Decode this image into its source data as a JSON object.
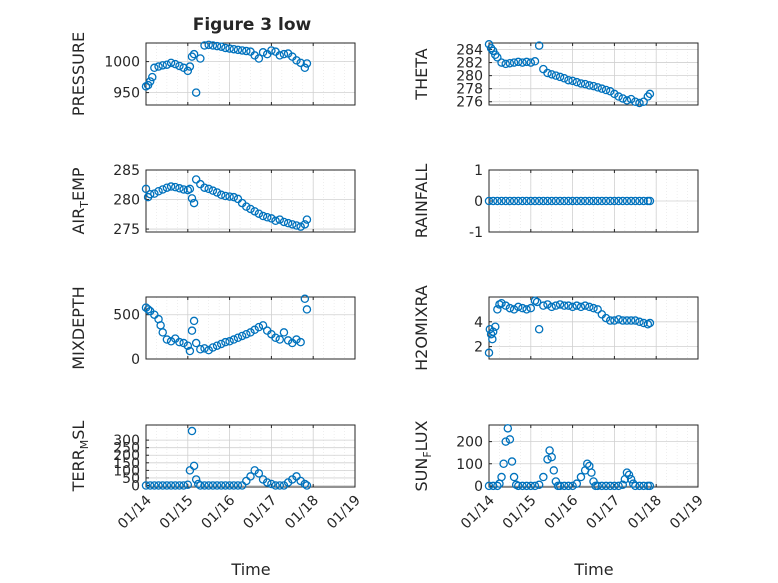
{
  "figure": {
    "title": "Figure 3 low",
    "marker_color": "#0072BD",
    "date_ticks": [
      "01/14",
      "01/15",
      "01/16",
      "01/17",
      "01/18",
      "01/19"
    ],
    "xlabel": "Time"
  },
  "chart_data": [
    {
      "type": "scatter",
      "name": "PRESSURE",
      "ylabel": "PRESSURE",
      "xlim": [
        "01/14",
        "01/19"
      ],
      "ylim": [
        930,
        1030
      ],
      "yticks": [
        950,
        1000
      ],
      "grid": true,
      "title": "Figure 3 low",
      "x": [
        14.0,
        14.05,
        14.1,
        14.15,
        14.2,
        14.3,
        14.4,
        14.5,
        14.6,
        14.7,
        14.8,
        14.9,
        15.0,
        15.05,
        15.1,
        15.15,
        15.2,
        15.3,
        15.4,
        15.5,
        15.6,
        15.7,
        15.8,
        15.9,
        16.0,
        16.1,
        16.2,
        16.3,
        16.4,
        16.5,
        16.6,
        16.7,
        16.8,
        16.9,
        17.0,
        17.1,
        17.2,
        17.3,
        17.4,
        17.5,
        17.6,
        17.7,
        17.8,
        17.85
      ],
      "y": [
        960,
        962,
        968,
        975,
        990,
        992,
        994,
        995,
        998,
        996,
        993,
        990,
        985,
        992,
        1008,
        1012,
        950,
        1005,
        1026,
        1027,
        1026,
        1025,
        1024,
        1022,
        1021,
        1020,
        1019,
        1018,
        1017,
        1016,
        1010,
        1005,
        1015,
        1012,
        1018,
        1016,
        1010,
        1012,
        1013,
        1008,
        1002,
        998,
        990,
        997
      ]
    },
    {
      "type": "scatter",
      "name": "THETA",
      "ylabel": "THETA",
      "xlim": [
        "01/14",
        "01/19"
      ],
      "ylim": [
        275.5,
        285
      ],
      "yticks": [
        276,
        278,
        280,
        282,
        284
      ],
      "grid": true,
      "x": [
        14.0,
        14.05,
        14.1,
        14.15,
        14.2,
        14.3,
        14.4,
        14.5,
        14.6,
        14.7,
        14.8,
        14.9,
        15.0,
        15.1,
        15.2,
        15.3,
        15.4,
        15.5,
        15.6,
        15.7,
        15.8,
        15.9,
        16.0,
        16.1,
        16.2,
        16.3,
        16.4,
        16.5,
        16.6,
        16.7,
        16.8,
        16.9,
        17.0,
        17.1,
        17.2,
        17.3,
        17.4,
        17.5,
        17.6,
        17.7,
        17.8,
        17.85
      ],
      "y": [
        284.8,
        284.2,
        283.8,
        283.2,
        282.8,
        282.0,
        281.8,
        281.9,
        282.0,
        282.1,
        282.0,
        282.1,
        282.0,
        282.2,
        284.6,
        281.0,
        280.4,
        280.2,
        280.0,
        279.8,
        279.6,
        279.3,
        279.2,
        279.0,
        278.8,
        278.7,
        278.5,
        278.4,
        278.2,
        278.0,
        277.8,
        277.6,
        277.2,
        276.8,
        276.5,
        276.2,
        276.4,
        276.0,
        275.8,
        276.0,
        276.8,
        277.2
      ]
    },
    {
      "type": "scatter",
      "name": "AIR_TEMP",
      "ylabel": "AIR_TEMP",
      "xlim": [
        "01/14",
        "01/19"
      ],
      "ylim": [
        274.5,
        285
      ],
      "yticks": [
        275,
        280,
        285
      ],
      "grid": true,
      "x": [
        14.0,
        14.05,
        14.1,
        14.2,
        14.3,
        14.4,
        14.5,
        14.6,
        14.7,
        14.8,
        14.9,
        15.0,
        15.05,
        15.1,
        15.15,
        15.2,
        15.3,
        15.4,
        15.5,
        15.6,
        15.7,
        15.8,
        15.9,
        16.0,
        16.1,
        16.2,
        16.3,
        16.4,
        16.5,
        16.6,
        16.7,
        16.8,
        16.9,
        17.0,
        17.1,
        17.2,
        17.3,
        17.4,
        17.5,
        17.6,
        17.7,
        17.8,
        17.85
      ],
      "y": [
        281.8,
        280.4,
        280.9,
        281.0,
        281.4,
        281.7,
        282.0,
        282.2,
        282.1,
        281.9,
        281.7,
        281.6,
        281.8,
        280.2,
        279.4,
        283.4,
        282.6,
        282.0,
        281.8,
        281.5,
        281.2,
        280.8,
        280.6,
        280.5,
        280.4,
        280.1,
        279.4,
        278.8,
        278.4,
        278.0,
        277.6,
        277.2,
        277.0,
        276.8,
        276.4,
        276.6,
        276.2,
        276.0,
        275.8,
        275.6,
        275.4,
        275.8,
        276.6
      ]
    },
    {
      "type": "scatter",
      "name": "RAINFALL",
      "ylabel": "RAINFALL",
      "xlim": [
        "01/14",
        "01/19"
      ],
      "ylim": [
        -1,
        1
      ],
      "yticks": [
        -1,
        0,
        1
      ],
      "grid": true,
      "x": [
        14.0,
        14.1,
        14.2,
        14.3,
        14.4,
        14.5,
        14.6,
        14.7,
        14.8,
        14.9,
        15.0,
        15.1,
        15.2,
        15.3,
        15.4,
        15.5,
        15.6,
        15.7,
        15.8,
        15.9,
        16.0,
        16.1,
        16.2,
        16.3,
        16.4,
        16.5,
        16.6,
        16.7,
        16.8,
        16.9,
        17.0,
        17.1,
        17.2,
        17.3,
        17.4,
        17.5,
        17.6,
        17.7,
        17.8,
        17.85
      ],
      "y": [
        0,
        0,
        0,
        0,
        0,
        0,
        0,
        0,
        0,
        0,
        0,
        0,
        0,
        0,
        0,
        0,
        0,
        0,
        0,
        0,
        0,
        0,
        0,
        0,
        0,
        0,
        0,
        0,
        0,
        0,
        0,
        0,
        0,
        0,
        0,
        0,
        0,
        0,
        0,
        0
      ]
    },
    {
      "type": "scatter",
      "name": "MIXDEPTH",
      "ylabel": "MIXDEPTH",
      "xlim": [
        "01/14",
        "01/19"
      ],
      "ylim": [
        0,
        700
      ],
      "yticks": [
        0,
        500
      ],
      "grid": true,
      "x": [
        14.0,
        14.05,
        14.1,
        14.2,
        14.3,
        14.35,
        14.4,
        14.5,
        14.6,
        14.7,
        14.8,
        14.9,
        15.0,
        15.05,
        15.1,
        15.15,
        15.2,
        15.3,
        15.4,
        15.5,
        15.6,
        15.7,
        15.8,
        15.9,
        16.0,
        16.1,
        16.2,
        16.3,
        16.4,
        16.5,
        16.6,
        16.7,
        16.8,
        16.9,
        17.0,
        17.1,
        17.2,
        17.3,
        17.4,
        17.5,
        17.6,
        17.7,
        17.8,
        17.85
      ],
      "y": [
        580,
        560,
        540,
        500,
        450,
        380,
        300,
        220,
        200,
        230,
        190,
        180,
        150,
        90,
        320,
        430,
        180,
        110,
        120,
        100,
        130,
        150,
        170,
        190,
        200,
        220,
        240,
        260,
        280,
        300,
        330,
        360,
        380,
        320,
        280,
        240,
        220,
        300,
        210,
        180,
        220,
        190,
        680,
        560
      ]
    },
    {
      "type": "scatter",
      "name": "H2OMIXRA",
      "ylabel": "H2OMIXRA",
      "xlim": [
        "01/14",
        "01/19"
      ],
      "ylim": [
        1,
        6
      ],
      "yticks": [
        2,
        4
      ],
      "grid": true,
      "x": [
        14.0,
        14.02,
        14.05,
        14.08,
        14.1,
        14.15,
        14.2,
        14.25,
        14.3,
        14.4,
        14.5,
        14.6,
        14.7,
        14.8,
        14.9,
        15.0,
        15.1,
        15.15,
        15.2,
        15.3,
        15.4,
        15.5,
        15.6,
        15.7,
        15.8,
        15.9,
        16.0,
        16.1,
        16.2,
        16.3,
        16.4,
        16.5,
        16.6,
        16.7,
        16.8,
        16.9,
        17.0,
        17.1,
        17.2,
        17.3,
        17.4,
        17.5,
        17.6,
        17.7,
        17.8,
        17.85
      ],
      "y": [
        1.5,
        3.4,
        3.0,
        2.6,
        3.2,
        3.6,
        5.0,
        5.4,
        5.5,
        5.3,
        5.1,
        5.0,
        5.2,
        5.1,
        5.0,
        5.1,
        5.7,
        5.6,
        3.4,
        5.3,
        5.4,
        5.2,
        5.3,
        5.4,
        5.3,
        5.3,
        5.2,
        5.3,
        5.2,
        5.3,
        5.2,
        5.1,
        5.0,
        4.6,
        4.3,
        4.1,
        4.1,
        4.2,
        4.1,
        4.1,
        4.1,
        4.1,
        4.0,
        3.9,
        3.8,
        3.9
      ]
    },
    {
      "type": "scatter",
      "name": "TERR_MSL",
      "ylabel": "TERR_MSL",
      "xlim": [
        "01/14",
        "01/19"
      ],
      "ylim": [
        -10,
        400
      ],
      "yticks": [
        0,
        50,
        100,
        150,
        200,
        250,
        300
      ],
      "grid": true,
      "x": [
        14.0,
        14.1,
        14.2,
        14.3,
        14.4,
        14.5,
        14.6,
        14.7,
        14.8,
        14.9,
        15.0,
        15.05,
        15.1,
        15.15,
        15.2,
        15.25,
        15.3,
        15.4,
        15.5,
        15.6,
        15.7,
        15.8,
        15.9,
        16.0,
        16.1,
        16.2,
        16.3,
        16.4,
        16.5,
        16.6,
        16.7,
        16.8,
        16.9,
        17.0,
        17.1,
        17.2,
        17.3,
        17.4,
        17.5,
        17.6,
        17.7,
        17.8,
        17.85
      ],
      "y": [
        0,
        0,
        0,
        0,
        0,
        0,
        0,
        0,
        0,
        0,
        5,
        100,
        360,
        130,
        40,
        10,
        0,
        0,
        0,
        0,
        0,
        0,
        0,
        0,
        0,
        0,
        0,
        30,
        60,
        100,
        80,
        40,
        20,
        10,
        0,
        0,
        0,
        20,
        40,
        60,
        30,
        10,
        0
      ]
    },
    {
      "type": "scatter",
      "name": "SUN_FLUX",
      "ylabel": "SUN_FLUX",
      "xlim": [
        "01/14",
        "01/19"
      ],
      "ylim": [
        -5,
        275
      ],
      "yticks": [
        0,
        100,
        200
      ],
      "grid": true,
      "x": [
        14.0,
        14.1,
        14.2,
        14.25,
        14.3,
        14.35,
        14.4,
        14.45,
        14.5,
        14.55,
        14.6,
        14.65,
        14.7,
        14.8,
        14.9,
        15.0,
        15.1,
        15.2,
        15.3,
        15.4,
        15.45,
        15.5,
        15.55,
        15.6,
        15.65,
        15.7,
        15.8,
        15.9,
        16.0,
        16.1,
        16.2,
        16.3,
        16.35,
        16.4,
        16.45,
        16.5,
        16.55,
        16.6,
        16.7,
        16.8,
        16.9,
        17.0,
        17.1,
        17.2,
        17.25,
        17.3,
        17.35,
        17.4,
        17.45,
        17.5,
        17.6,
        17.7,
        17.8,
        17.85
      ],
      "y": [
        0,
        0,
        0,
        10,
        40,
        100,
        200,
        260,
        210,
        110,
        40,
        5,
        0,
        0,
        0,
        0,
        0,
        5,
        40,
        120,
        160,
        130,
        70,
        20,
        0,
        0,
        0,
        0,
        0,
        10,
        40,
        70,
        100,
        90,
        60,
        20,
        0,
        0,
        0,
        0,
        0,
        0,
        0,
        5,
        30,
        60,
        50,
        30,
        10,
        0,
        0,
        0,
        0,
        0
      ]
    }
  ]
}
